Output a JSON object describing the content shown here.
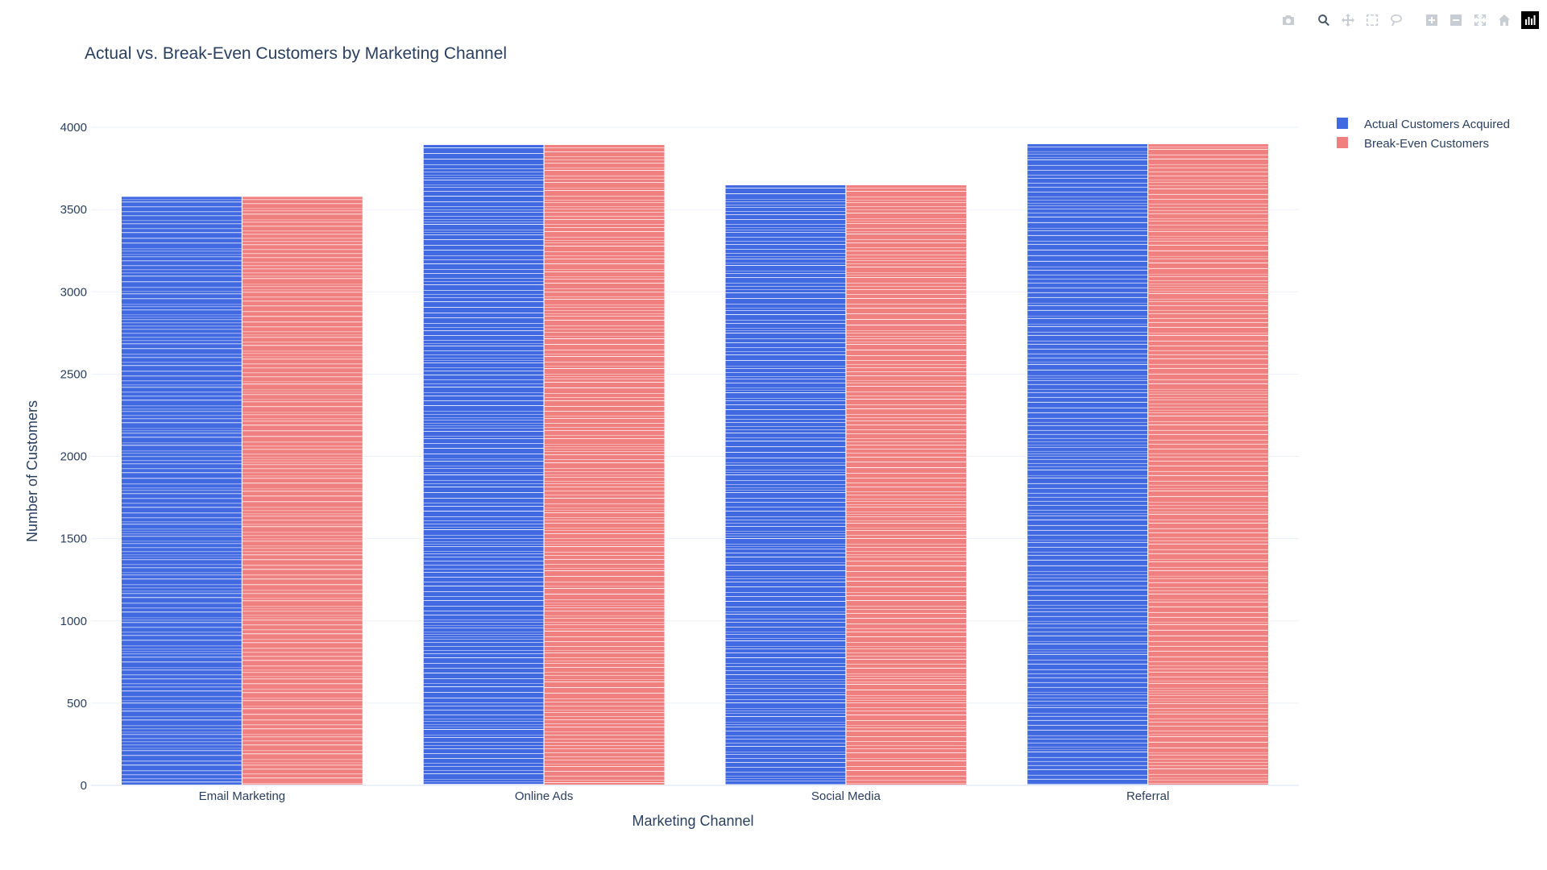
{
  "modebar": {
    "buttons": [
      {
        "name": "camera-icon",
        "active": false,
        "group": 0
      },
      {
        "name": "zoom-icon",
        "active": true,
        "group": 1
      },
      {
        "name": "pan-icon",
        "active": false,
        "group": 1
      },
      {
        "name": "box-select-icon",
        "active": false,
        "group": 1
      },
      {
        "name": "lasso-select-icon",
        "active": false,
        "group": 1
      },
      {
        "name": "zoom-in-icon",
        "active": false,
        "group": 2
      },
      {
        "name": "zoom-out-icon",
        "active": false,
        "group": 2
      },
      {
        "name": "autoscale-icon",
        "active": false,
        "group": 2
      },
      {
        "name": "reset-axes-icon",
        "active": false,
        "group": 2
      }
    ],
    "logo": "plotly-logo-icon"
  },
  "chart_data": {
    "type": "bar",
    "title": "Actual vs. Break-Even Customers by Marketing Channel",
    "xlabel": "Marketing Channel",
    "ylabel": "Number of Customers",
    "categories": [
      "Email Marketing",
      "Online Ads",
      "Social Media",
      "Referral"
    ],
    "series": [
      {
        "name": "Actual Customers Acquired",
        "color": "#4169e1",
        "values": [
          3580,
          3895,
          3650,
          3900
        ]
      },
      {
        "name": "Break-Even Customers",
        "color": "#f08080",
        "values": [
          3580,
          3895,
          3650,
          3900
        ]
      }
    ],
    "ylim": [
      0,
      4000
    ],
    "yticks": [
      "0",
      "500",
      "1000",
      "1500",
      "2000",
      "2500",
      "3000",
      "3500",
      "4000"
    ],
    "grid": true,
    "legend_position": "top-right",
    "bar_texture": "horizontal-stripes"
  }
}
